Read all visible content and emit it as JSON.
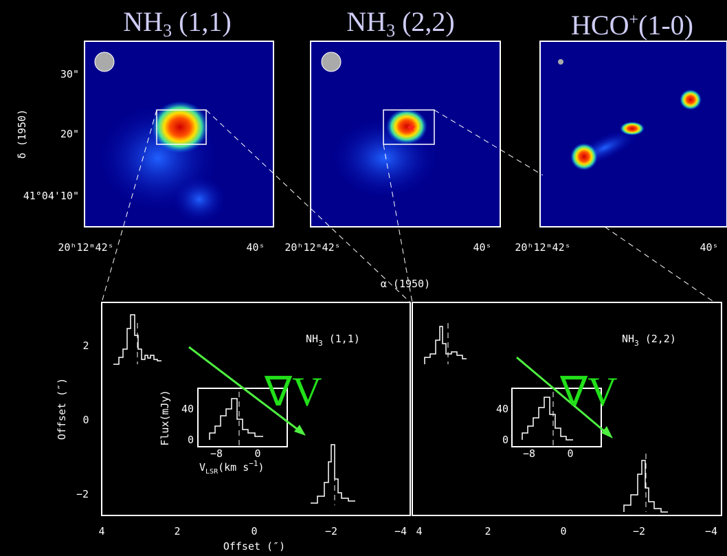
{
  "maps": [
    {
      "title": "NH",
      "title_sub": "3",
      "title_rest": " (1,1)"
    },
    {
      "title": "NH",
      "title_sub": "3",
      "title_rest": " (2,2)"
    },
    {
      "title": "HCO",
      "title_sup": "+",
      "title_rest": "(1-0)"
    }
  ],
  "map_ylabel": "δ (1950)",
  "map_yticks": [
    "30\"",
    "20\"",
    "41°04'10\""
  ],
  "map_xticks": [
    "20ʰ12ᵐ42ˢ",
    "40ˢ"
  ],
  "map_xlabel": "α (1950)",
  "spectra": {
    "ylabel": "Offset (″)",
    "xlabel": "Offset (″)",
    "yticks": [
      "2",
      "0",
      "−2"
    ],
    "xticks": [
      "4",
      "2",
      "0",
      "−2",
      "−4"
    ],
    "panels": [
      {
        "label": "NH",
        "label_sub": "3",
        "label_rest": " (1,1)"
      },
      {
        "label": "NH",
        "label_sub": "3",
        "label_rest": " (2,2)"
      }
    ],
    "gradient": "∇V",
    "inset": {
      "ylabel": "Flux(mJy)",
      "yticks": [
        "40",
        "0"
      ],
      "xticks": [
        "−8",
        "0"
      ],
      "xlabel": "V",
      "xlabel_sub": "LSR",
      "xlabel_rest": "(km s",
      "xlabel_sup": "−1",
      "xlabel_end": ")"
    }
  }
}
